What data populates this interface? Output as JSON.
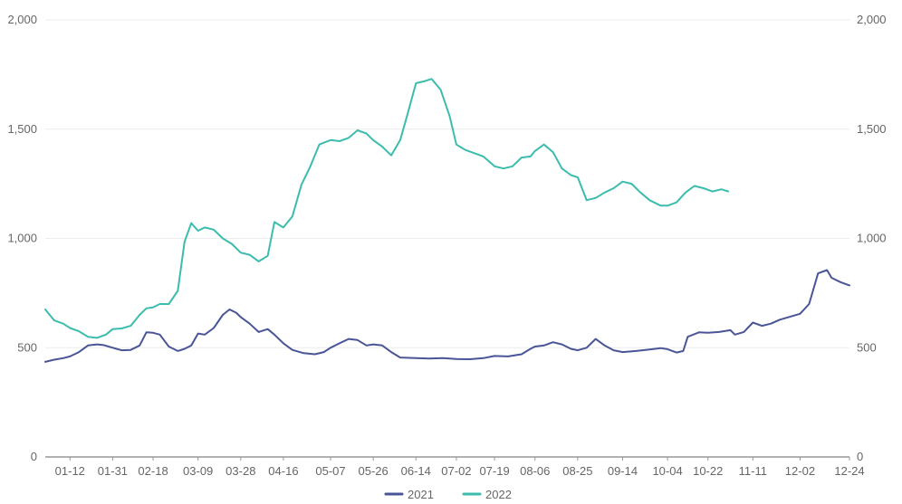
{
  "chart_data": {
    "type": "line",
    "title": "",
    "xlabel": "",
    "ylabel": "",
    "ylim": [
      0,
      2000
    ],
    "y_ticks": [
      0,
      500,
      1000,
      1500,
      2000
    ],
    "y_tick_labels": [
      "0",
      "500",
      "1,000",
      "1,500",
      "2,000"
    ],
    "x_tick_labels": [
      "01-12",
      "01-31",
      "02-18",
      "03-09",
      "03-28",
      "04-16",
      "05-07",
      "05-26",
      "06-14",
      "07-02",
      "07-19",
      "08-06",
      "08-25",
      "09-14",
      "10-04",
      "10-22",
      "11-11",
      "12-02",
      "12-24"
    ],
    "grid": true,
    "legend_position": "bottom-center",
    "series": [
      {
        "name": "2021",
        "color": "#4a5597",
        "points": [
          [
            "01-01",
            435
          ],
          [
            "01-05",
            445
          ],
          [
            "01-09",
            452
          ],
          [
            "01-12",
            460
          ],
          [
            "01-16",
            480
          ],
          [
            "01-20",
            510
          ],
          [
            "01-24",
            515
          ],
          [
            "01-27",
            512
          ],
          [
            "01-31",
            500
          ],
          [
            "02-04",
            488
          ],
          [
            "02-08",
            490
          ],
          [
            "02-12",
            510
          ],
          [
            "02-15",
            570
          ],
          [
            "02-18",
            568
          ],
          [
            "02-21",
            560
          ],
          [
            "02-25",
            505
          ],
          [
            "02-29",
            485
          ],
          [
            "03-03",
            495
          ],
          [
            "03-06",
            510
          ],
          [
            "03-09",
            565
          ],
          [
            "03-12",
            560
          ],
          [
            "03-16",
            590
          ],
          [
            "03-20",
            650
          ],
          [
            "03-23",
            675
          ],
          [
            "03-26",
            660
          ],
          [
            "03-28",
            640
          ],
          [
            "04-01",
            610
          ],
          [
            "04-05",
            572
          ],
          [
            "04-09",
            585
          ],
          [
            "04-12",
            560
          ],
          [
            "04-16",
            520
          ],
          [
            "04-20",
            490
          ],
          [
            "04-25",
            475
          ],
          [
            "04-30",
            470
          ],
          [
            "05-04",
            480
          ],
          [
            "05-07",
            500
          ],
          [
            "05-11",
            520
          ],
          [
            "05-15",
            540
          ],
          [
            "05-19",
            535
          ],
          [
            "05-23",
            510
          ],
          [
            "05-26",
            515
          ],
          [
            "05-30",
            510
          ],
          [
            "06-03",
            480
          ],
          [
            "06-07",
            455
          ],
          [
            "06-14",
            452
          ],
          [
            "06-20",
            450
          ],
          [
            "06-26",
            452
          ],
          [
            "07-02",
            448
          ],
          [
            "07-08",
            447
          ],
          [
            "07-14",
            452
          ],
          [
            "07-19",
            462
          ],
          [
            "07-25",
            460
          ],
          [
            "07-31",
            470
          ],
          [
            "08-04",
            495
          ],
          [
            "08-06",
            505
          ],
          [
            "08-10",
            510
          ],
          [
            "08-14",
            525
          ],
          [
            "08-18",
            515
          ],
          [
            "08-22",
            495
          ],
          [
            "08-25",
            488
          ],
          [
            "08-29",
            500
          ],
          [
            "09-02",
            540
          ],
          [
            "09-06",
            510
          ],
          [
            "09-10",
            488
          ],
          [
            "09-14",
            480
          ],
          [
            "09-20",
            485
          ],
          [
            "09-26",
            492
          ],
          [
            "10-01",
            498
          ],
          [
            "10-04",
            493
          ],
          [
            "10-08",
            478
          ],
          [
            "10-11",
            485
          ],
          [
            "10-13",
            550
          ],
          [
            "10-18",
            570
          ],
          [
            "10-22",
            568
          ],
          [
            "10-27",
            572
          ],
          [
            "11-01",
            580
          ],
          [
            "11-03",
            560
          ],
          [
            "11-07",
            572
          ],
          [
            "11-11",
            615
          ],
          [
            "11-15",
            600
          ],
          [
            "11-19",
            610
          ],
          [
            "11-23",
            628
          ],
          [
            "11-27",
            640
          ],
          [
            "12-02",
            655
          ],
          [
            "12-06",
            700
          ],
          [
            "12-10",
            840
          ],
          [
            "12-14",
            855
          ],
          [
            "12-16",
            820
          ],
          [
            "12-20",
            800
          ],
          [
            "12-24",
            785
          ]
        ]
      },
      {
        "name": "2022",
        "color": "#3cbcad",
        "points": [
          [
            "01-01",
            675
          ],
          [
            "01-05",
            625
          ],
          [
            "01-09",
            610
          ],
          [
            "01-12",
            590
          ],
          [
            "01-16",
            575
          ],
          [
            "01-20",
            550
          ],
          [
            "01-24",
            545
          ],
          [
            "01-28",
            560
          ],
          [
            "01-31",
            585
          ],
          [
            "02-04",
            588
          ],
          [
            "02-08",
            600
          ],
          [
            "02-12",
            650
          ],
          [
            "02-15",
            680
          ],
          [
            "02-18",
            685
          ],
          [
            "02-21",
            700
          ],
          [
            "02-25",
            700
          ],
          [
            "02-29",
            760
          ],
          [
            "03-03",
            985
          ],
          [
            "03-06",
            1070
          ],
          [
            "03-09",
            1035
          ],
          [
            "03-12",
            1050
          ],
          [
            "03-16",
            1040
          ],
          [
            "03-20",
            1000
          ],
          [
            "03-24",
            975
          ],
          [
            "03-28",
            935
          ],
          [
            "04-01",
            925
          ],
          [
            "04-05",
            895
          ],
          [
            "04-09",
            920
          ],
          [
            "04-12",
            1075
          ],
          [
            "04-16",
            1050
          ],
          [
            "04-20",
            1100
          ],
          [
            "04-24",
            1245
          ],
          [
            "04-28",
            1330
          ],
          [
            "05-02",
            1430
          ],
          [
            "05-07",
            1450
          ],
          [
            "05-11",
            1445
          ],
          [
            "05-15",
            1460
          ],
          [
            "05-19",
            1495
          ],
          [
            "05-23",
            1480
          ],
          [
            "05-26",
            1450
          ],
          [
            "05-30",
            1420
          ],
          [
            "06-03",
            1380
          ],
          [
            "06-07",
            1450
          ],
          [
            "06-10",
            1560
          ],
          [
            "06-14",
            1710
          ],
          [
            "06-18",
            1720
          ],
          [
            "06-21",
            1730
          ],
          [
            "06-25",
            1680
          ],
          [
            "06-29",
            1560
          ],
          [
            "07-02",
            1430
          ],
          [
            "07-06",
            1405
          ],
          [
            "07-10",
            1390
          ],
          [
            "07-14",
            1375
          ],
          [
            "07-19",
            1330
          ],
          [
            "07-23",
            1320
          ],
          [
            "07-27",
            1330
          ],
          [
            "07-31",
            1370
          ],
          [
            "08-04",
            1375
          ],
          [
            "08-06",
            1400
          ],
          [
            "08-10",
            1430
          ],
          [
            "08-14",
            1395
          ],
          [
            "08-18",
            1320
          ],
          [
            "08-22",
            1290
          ],
          [
            "08-25",
            1280
          ],
          [
            "08-29",
            1175
          ],
          [
            "09-02",
            1185
          ],
          [
            "09-06",
            1210
          ],
          [
            "09-10",
            1230
          ],
          [
            "09-14",
            1260
          ],
          [
            "09-18",
            1250
          ],
          [
            "09-22",
            1210
          ],
          [
            "09-26",
            1175
          ],
          [
            "10-01",
            1150
          ],
          [
            "10-04",
            1150
          ],
          [
            "10-08",
            1165
          ],
          [
            "10-12",
            1210
          ],
          [
            "10-16",
            1240
          ],
          [
            "10-20",
            1230
          ],
          [
            "10-24",
            1215
          ],
          [
            "10-28",
            1225
          ],
          [
            "10-31",
            1215
          ]
        ]
      }
    ]
  }
}
